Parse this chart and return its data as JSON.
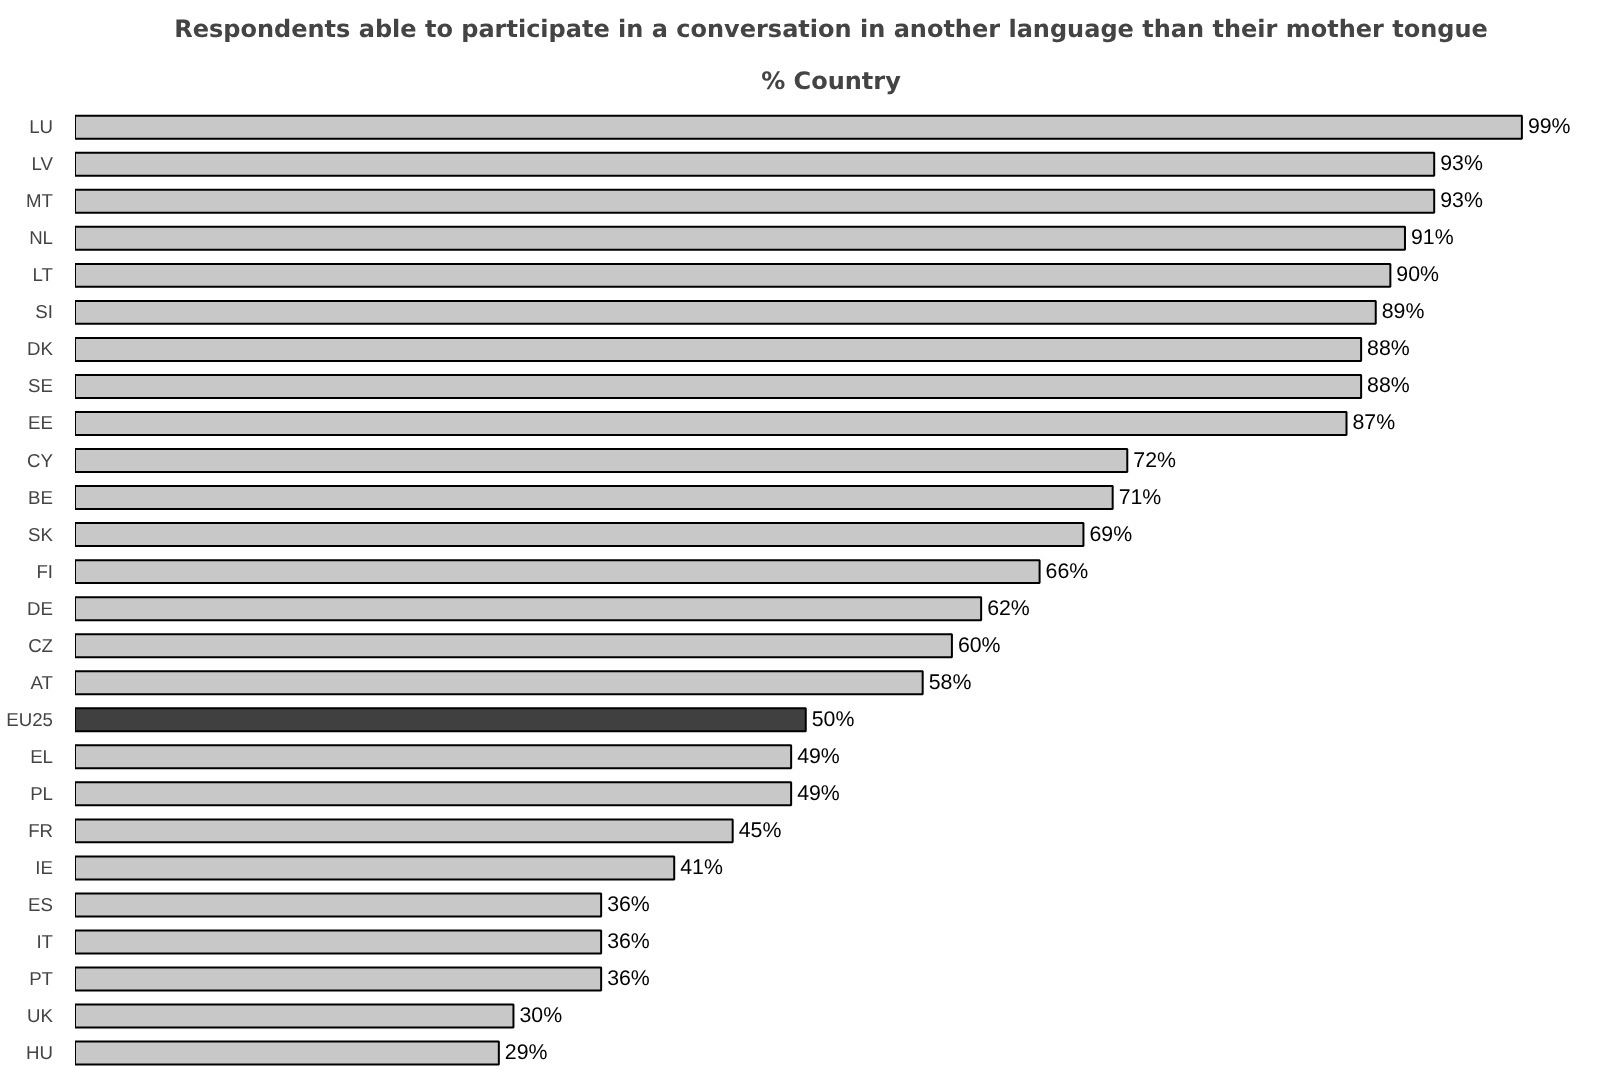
{
  "chart_data": {
    "type": "bar",
    "orientation": "horizontal",
    "title": "Respondents able to participate in a conversation in another language than their mother tongue",
    "subtitle": "% Country",
    "categories": [
      "LU",
      "LV",
      "MT",
      "NL",
      "LT",
      "SI",
      "DK",
      "SE",
      "EE",
      "CY",
      "BE",
      "SK",
      "FI",
      "DE",
      "CZ",
      "AT",
      "EU25",
      "EL",
      "PL",
      "FR",
      "IE",
      "ES",
      "IT",
      "PT",
      "UK",
      "HU"
    ],
    "values": [
      99,
      93,
      93,
      91,
      90,
      89,
      88,
      88,
      87,
      72,
      71,
      69,
      66,
      62,
      60,
      58,
      50,
      49,
      49,
      45,
      41,
      36,
      36,
      36,
      30,
      29
    ],
    "value_labels": [
      "99%",
      "93%",
      "93%",
      "91%",
      "90%",
      "89%",
      "88%",
      "88%",
      "87%",
      "72%",
      "71%",
      "69%",
      "66%",
      "62%",
      "60%",
      "58%",
      "50%",
      "49%",
      "49%",
      "45%",
      "41%",
      "36%",
      "36%",
      "36%",
      "30%",
      "29%"
    ],
    "colors": [
      "#c8c8c8",
      "#c8c8c8",
      "#c8c8c8",
      "#c8c8c8",
      "#c8c8c8",
      "#c8c8c8",
      "#c8c8c8",
      "#c8c8c8",
      "#c8c8c8",
      "#c8c8c8",
      "#c8c8c8",
      "#c8c8c8",
      "#c8c8c8",
      "#c8c8c8",
      "#c8c8c8",
      "#c8c8c8",
      "#404040",
      "#c8c8c8",
      "#c8c8c8",
      "#c8c8c8",
      "#c8c8c8",
      "#c8c8c8",
      "#c8c8c8",
      "#c8c8c8",
      "#c8c8c8",
      "#c8c8c8"
    ],
    "grid": false
  }
}
